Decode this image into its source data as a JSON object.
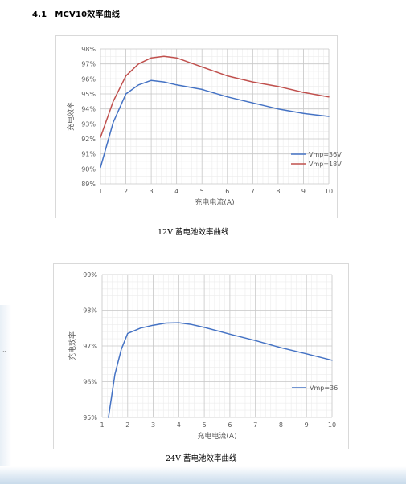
{
  "section": {
    "number": "4.1",
    "title": "MCV10效率曲线"
  },
  "side_mark": "⌄",
  "charts": [
    {
      "caption": "12V 蓄电池效率曲线"
    },
    {
      "caption": "24V 蓄电池效率曲线"
    }
  ],
  "chart_data": [
    {
      "type": "line",
      "xlabel": "充电电流(A)",
      "ylabel": "充电效率",
      "xlim": [
        1,
        10
      ],
      "ylim": [
        89,
        98
      ],
      "xticks": [
        1,
        2,
        3,
        4,
        5,
        6,
        7,
        8,
        9,
        10
      ],
      "yticks": [
        89,
        90,
        91,
        92,
        93,
        94,
        95,
        96,
        97,
        98
      ],
      "ytick_format": "percent",
      "grid": true,
      "legend_position": "right",
      "series": [
        {
          "name": "Vmp=36V",
          "color": "#4472c4",
          "x": [
            1,
            1.5,
            2,
            2.5,
            3,
            3.5,
            4,
            5,
            6,
            7,
            8,
            9,
            10
          ],
          "y": [
            90.1,
            93.1,
            95.0,
            95.6,
            95.9,
            95.8,
            95.6,
            95.3,
            94.8,
            94.4,
            94.0,
            93.7,
            93.5
          ]
        },
        {
          "name": "Vmp=18V",
          "color": "#c0504d",
          "x": [
            1,
            1.5,
            2,
            2.5,
            3,
            3.5,
            4,
            5,
            6,
            7,
            8,
            9,
            10
          ],
          "y": [
            92.1,
            94.5,
            96.2,
            97.0,
            97.4,
            97.5,
            97.4,
            96.8,
            96.2,
            95.8,
            95.5,
            95.1,
            94.8
          ]
        }
      ]
    },
    {
      "type": "line",
      "xlabel": "充电电流(A)",
      "ylabel": "充电效率",
      "xlim": [
        1,
        10
      ],
      "ylim": [
        95,
        99
      ],
      "xticks": [
        1,
        2,
        3,
        4,
        5,
        6,
        7,
        8,
        9,
        10
      ],
      "yticks": [
        95,
        96,
        97,
        98,
        99
      ],
      "ytick_format": "percent",
      "grid": true,
      "legend_position": "right",
      "series": [
        {
          "name": "Vmp=36",
          "color": "#4472c4",
          "x": [
            1.25,
            1.5,
            1.75,
            2,
            2.5,
            3,
            3.5,
            4,
            4.5,
            5,
            6,
            7,
            8,
            9,
            10
          ],
          "y": [
            95.0,
            96.2,
            96.9,
            97.35,
            97.5,
            97.58,
            97.64,
            97.65,
            97.6,
            97.52,
            97.33,
            97.15,
            96.95,
            96.78,
            96.6
          ]
        }
      ]
    }
  ]
}
